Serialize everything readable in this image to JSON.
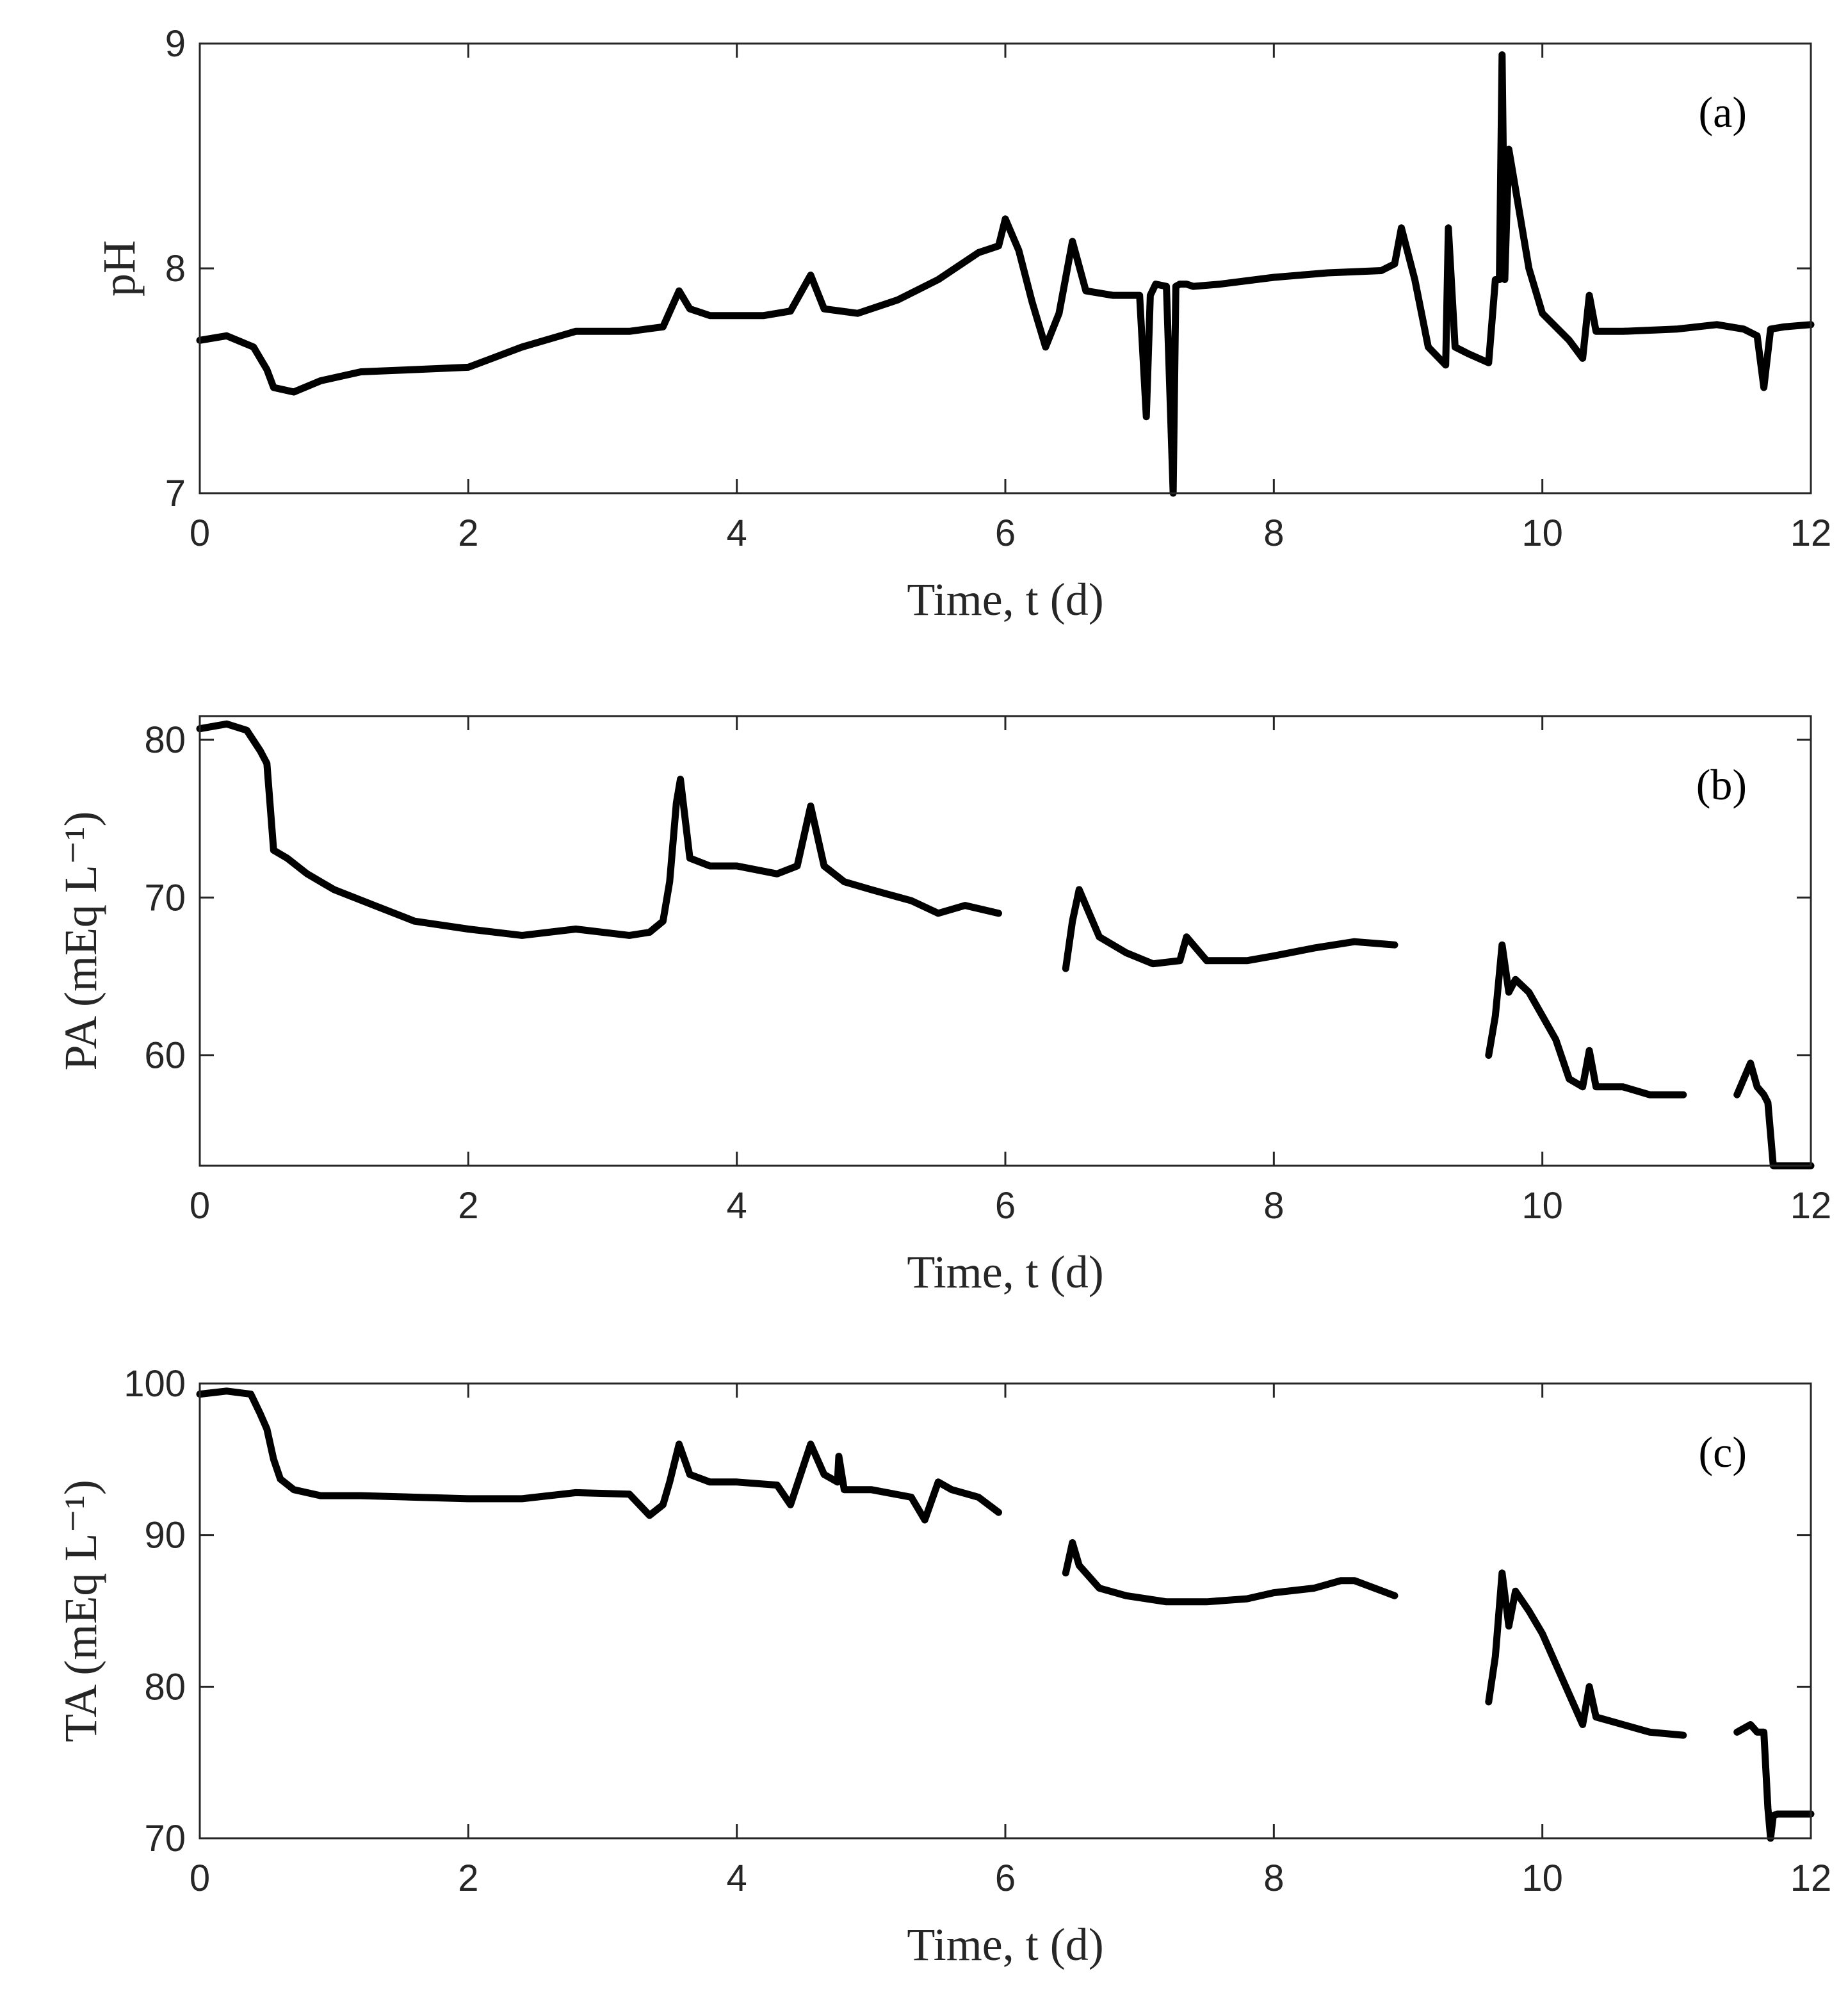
{
  "chart_data": [
    {
      "type": "line",
      "panel_label": "(a)",
      "xlabel": "Time, t (d)",
      "ylabel": "pH",
      "xlim": [
        0,
        12
      ],
      "ylim": [
        7,
        9
      ],
      "xticks": [
        0,
        2,
        4,
        6,
        8,
        10,
        12
      ],
      "yticks": [
        7,
        8,
        9
      ],
      "grid": false,
      "line_color": "#000000",
      "segments": [
        {
          "x": [
            0,
            0.2,
            0.4,
            0.5,
            0.55,
            0.7,
            0.9,
            1.2,
            1.6,
            2.0,
            2.4,
            2.8,
            3.2,
            3.45,
            3.57,
            3.65,
            3.8,
            4.2,
            4.4,
            4.55,
            4.65,
            4.9,
            5.2,
            5.5,
            5.8,
            5.95,
            6.0,
            6.1,
            6.2,
            6.3,
            6.4,
            6.5,
            6.6,
            6.8,
            7.0,
            7.05,
            7.08,
            7.12,
            7.2,
            7.25,
            7.27,
            7.3,
            7.35,
            7.4,
            7.6,
            8.0,
            8.4,
            8.8,
            8.9,
            8.95,
            9.05,
            9.15,
            9.28,
            9.3,
            9.35,
            9.45,
            9.6,
            9.65,
            9.68,
            9.7,
            9.72,
            9.75,
            9.9,
            10.0,
            10.2,
            10.3,
            10.35,
            10.4,
            10.6,
            11.0,
            11.3,
            11.5,
            11.6,
            11.65,
            11.7,
            11.8,
            12.0
          ],
          "y": [
            7.68,
            7.7,
            7.65,
            7.55,
            7.47,
            7.45,
            7.5,
            7.54,
            7.55,
            7.56,
            7.65,
            7.72,
            7.72,
            7.74,
            7.9,
            7.82,
            7.79,
            7.79,
            7.81,
            7.97,
            7.82,
            7.8,
            7.86,
            7.95,
            8.07,
            8.1,
            8.22,
            8.08,
            7.85,
            7.65,
            7.8,
            8.12,
            7.9,
            7.88,
            7.88,
            7.34,
            7.88,
            7.93,
            7.92,
            7.0,
            7.92,
            7.93,
            7.93,
            7.92,
            7.93,
            7.96,
            7.98,
            7.99,
            8.02,
            8.18,
            7.95,
            7.65,
            7.57,
            8.18,
            7.65,
            7.62,
            7.58,
            7.95,
            7.95,
            8.95,
            7.95,
            8.53,
            8.0,
            7.8,
            7.68,
            7.6,
            7.88,
            7.72,
            7.72,
            7.73,
            7.75,
            7.73,
            7.7,
            7.47,
            7.73,
            7.74,
            7.75
          ]
        }
      ]
    },
    {
      "type": "line",
      "panel_label": "(b)",
      "xlabel": "Time, t (d)",
      "ylabel": "PA (mEq L⁻¹)",
      "xlim": [
        0,
        12
      ],
      "ylim": [
        53,
        81.5
      ],
      "xticks": [
        0,
        2,
        4,
        6,
        8,
        10,
        12
      ],
      "yticks": [
        60,
        70,
        80
      ],
      "grid": false,
      "line_color": "#000000",
      "segments": [
        {
          "x": [
            0,
            0.2,
            0.35,
            0.45,
            0.5,
            0.55,
            0.65,
            0.8,
            1.0,
            1.3,
            1.6,
            2.0,
            2.4,
            2.8,
            3.2,
            3.35,
            3.45,
            3.5,
            3.55,
            3.58,
            3.65,
            3.8,
            4.0,
            4.3,
            4.45,
            4.55,
            4.65,
            4.8,
            5.0,
            5.3,
            5.5,
            5.7,
            5.95
          ],
          "y": [
            80.7,
            81.0,
            80.6,
            79.3,
            78.5,
            73.0,
            72.5,
            71.5,
            70.5,
            69.5,
            68.5,
            68.0,
            67.6,
            68.0,
            67.6,
            67.8,
            68.5,
            71.0,
            76.0,
            77.5,
            72.5,
            72.0,
            72.0,
            71.5,
            72.0,
            75.8,
            72.0,
            71.0,
            70.5,
            69.8,
            69.0,
            69.5,
            69.0
          ]
        },
        {
          "x": [
            6.45,
            6.5,
            6.55,
            6.6,
            6.7,
            6.9,
            7.1,
            7.3,
            7.35,
            7.5,
            7.8,
            8.0,
            8.3,
            8.6,
            8.9
          ],
          "y": [
            65.5,
            68.5,
            70.5,
            69.5,
            67.5,
            66.5,
            65.8,
            66.0,
            67.5,
            66.0,
            66.0,
            66.3,
            66.8,
            67.2,
            67.0
          ]
        },
        {
          "x": [
            9.6,
            9.65,
            9.7,
            9.75,
            9.8,
            9.9,
            10.0,
            10.1,
            10.2,
            10.3,
            10.35,
            10.4,
            10.6,
            10.8,
            11.05
          ],
          "y": [
            60.0,
            62.5,
            67.0,
            64.0,
            64.8,
            64.0,
            62.5,
            61.0,
            58.5,
            58.0,
            60.3,
            58.0,
            58.0,
            57.5,
            57.5
          ]
        },
        {
          "x": [
            11.45,
            11.5,
            11.55,
            11.6,
            11.65,
            11.68,
            11.7,
            11.72,
            12.0
          ],
          "y": [
            57.5,
            58.5,
            59.5,
            58.0,
            57.5,
            57.0,
            55.0,
            53.0,
            53.0
          ]
        }
      ]
    },
    {
      "type": "line",
      "panel_label": "(c)",
      "xlabel": "Time, t (d)",
      "ylabel": "TA (mEq L⁻¹)",
      "xlim": [
        0,
        12
      ],
      "ylim": [
        70,
        100
      ],
      "xticks": [
        0,
        2,
        4,
        6,
        8,
        10,
        12
      ],
      "yticks": [
        70,
        80,
        90,
        100
      ],
      "grid": false,
      "line_color": "#000000",
      "segments": [
        {
          "x": [
            0,
            0.2,
            0.38,
            0.45,
            0.5,
            0.55,
            0.6,
            0.7,
            0.9,
            1.2,
            1.6,
            2.0,
            2.4,
            2.8,
            3.2,
            3.35,
            3.45,
            3.5,
            3.57,
            3.65,
            3.8,
            4.0,
            4.3,
            4.4,
            4.55,
            4.65,
            4.75,
            4.76,
            4.8,
            5.0,
            5.3,
            5.4,
            5.5,
            5.6,
            5.8,
            5.95
          ],
          "y": [
            99.3,
            99.5,
            99.3,
            98.0,
            97.0,
            95.0,
            93.7,
            93.0,
            92.6,
            92.6,
            92.5,
            92.4,
            92.4,
            92.8,
            92.7,
            91.3,
            92.0,
            93.5,
            96.0,
            94.0,
            93.5,
            93.5,
            93.3,
            92.0,
            96.0,
            94.0,
            93.5,
            95.2,
            93.0,
            93.0,
            92.5,
            91.0,
            93.5,
            93.0,
            92.5,
            91.5
          ]
        },
        {
          "x": [
            6.45,
            6.5,
            6.55,
            6.6,
            6.7,
            6.9,
            7.2,
            7.5,
            7.8,
            8.0,
            8.3,
            8.5,
            8.6,
            8.9
          ],
          "y": [
            87.5,
            89.5,
            88.0,
            87.5,
            86.5,
            86.0,
            85.6,
            85.6,
            85.8,
            86.2,
            86.5,
            87.0,
            87.0,
            86.0
          ]
        },
        {
          "x": [
            9.6,
            9.65,
            9.7,
            9.75,
            9.8,
            9.9,
            10.0,
            10.1,
            10.2,
            10.3,
            10.35,
            10.4,
            10.6,
            10.8,
            11.05
          ],
          "y": [
            79.0,
            82.0,
            87.5,
            84.0,
            86.3,
            85.0,
            83.5,
            81.5,
            79.5,
            77.5,
            80.0,
            78.0,
            77.5,
            77.0,
            76.8
          ]
        },
        {
          "x": [
            11.45,
            11.55,
            11.6,
            11.65,
            11.68,
            11.7,
            11.72,
            11.75,
            12.0
          ],
          "y": [
            77.0,
            77.5,
            77.0,
            77.0,
            72.0,
            70.0,
            71.5,
            71.6,
            71.6
          ]
        }
      ]
    }
  ]
}
